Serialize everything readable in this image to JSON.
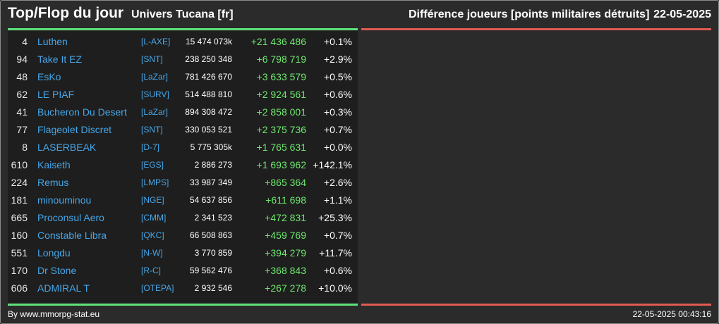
{
  "header": {
    "title": "Top/Flop du jour",
    "universe": "Univers Tucana [fr]",
    "metric": "Différence joueurs [points militaires détruits]",
    "date": "22-05-2025"
  },
  "colors": {
    "background": "#2b2b2b",
    "panel": "#1e1e1e",
    "top_accent": "#5ee07a",
    "flop_accent": "#e05a50",
    "link": "#46a6e8",
    "gain": "#6ee86e"
  },
  "top_rows": [
    {
      "rank": "4",
      "name": "Luthen",
      "alliance": "[L-AXE]",
      "points": "15 474 073k",
      "diff": "+21 436 486",
      "pct": "+0.1%"
    },
    {
      "rank": "94",
      "name": "Take It EZ",
      "alliance": "[SNT]",
      "points": "238 250 348",
      "diff": "+6 798 719",
      "pct": "+2.9%"
    },
    {
      "rank": "48",
      "name": "EsKo",
      "alliance": "[LaZar]",
      "points": "781 426 670",
      "diff": "+3 633 579",
      "pct": "+0.5%"
    },
    {
      "rank": "62",
      "name": "LE PIAF",
      "alliance": "[SURV]",
      "points": "514 488 810",
      "diff": "+2 924 561",
      "pct": "+0.6%"
    },
    {
      "rank": "41",
      "name": "Bucheron Du Desert",
      "alliance": "[LaZar]",
      "points": "894 308 472",
      "diff": "+2 858 001",
      "pct": "+0.3%"
    },
    {
      "rank": "77",
      "name": "Flageolet Discret",
      "alliance": "[SNT]",
      "points": "330 053 521",
      "diff": "+2 375 736",
      "pct": "+0.7%"
    },
    {
      "rank": "8",
      "name": "LASERBEAK",
      "alliance": "[D-7]",
      "points": "5 775 305k",
      "diff": "+1 765 631",
      "pct": "+0.0%"
    },
    {
      "rank": "610",
      "name": "Kaiseth",
      "alliance": "[EGS]",
      "points": "2 886 273",
      "diff": "+1 693 962",
      "pct": "+142.1%"
    },
    {
      "rank": "224",
      "name": "Remus",
      "alliance": "[LMPS]",
      "points": "33 987 349",
      "diff": "+865 364",
      "pct": "+2.6%"
    },
    {
      "rank": "181",
      "name": "minouminou",
      "alliance": "[NGE]",
      "points": "54 637 856",
      "diff": "+611 698",
      "pct": "+1.1%"
    },
    {
      "rank": "665",
      "name": "Proconsul Aero",
      "alliance": "[CMM]",
      "points": "2 341 523",
      "diff": "+472 831",
      "pct": "+25.3%"
    },
    {
      "rank": "160",
      "name": "Constable Libra",
      "alliance": "[QKC]",
      "points": "66 508 863",
      "diff": "+459 769",
      "pct": "+0.7%"
    },
    {
      "rank": "551",
      "name": "Longdu",
      "alliance": "[N-W]",
      "points": "3 770 859",
      "diff": "+394 279",
      "pct": "+11.7%"
    },
    {
      "rank": "170",
      "name": "Dr Stone",
      "alliance": "[R-C]",
      "points": "59 562 476",
      "diff": "+368 843",
      "pct": "+0.6%"
    },
    {
      "rank": "606",
      "name": "ADMIRAL T",
      "alliance": "[OTEPA]",
      "points": "2 932 546",
      "diff": "+267 278",
      "pct": "+10.0%"
    }
  ],
  "flop_rows": [],
  "footer": {
    "source": "By www.mmorpg-stat.eu",
    "timestamp": "22-05-2025 00:43:16"
  }
}
